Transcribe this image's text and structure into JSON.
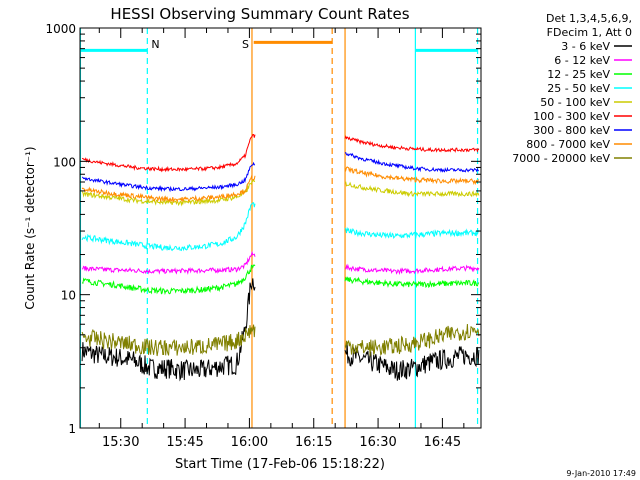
{
  "chart_data": {
    "type": "line",
    "title": "HESSI Observing Summary Count Rates",
    "xlabel": "Start Time (17-Feb-06 15:18:22)",
    "ylabel": "Count Rate (s⁻¹ detector⁻¹)",
    "x_ticks": [
      "15:30",
      "15:45",
      "16:00",
      "16:15",
      "16:30",
      "16:45"
    ],
    "x_tick_minutes": [
      930,
      945,
      960,
      975,
      990,
      1005
    ],
    "xlim_minutes": [
      920.5,
      1014
    ],
    "y_scale": "log",
    "ylim": [
      1,
      1000
    ],
    "y_ticks": [
      "1",
      "10",
      "100",
      "1000"
    ],
    "legend_header": [
      "Det 1,3,4,5,6,9,",
      "FDecim 1, Att 0"
    ],
    "legend_position": "outside-right",
    "timestamp": "9-Jan-2010 17:49",
    "data_gap_minutes": [
      961.3,
      982.3
    ],
    "markers": [
      {
        "label": "N",
        "minute": 936.2,
        "style": "dashed",
        "color": "#00ffff"
      },
      {
        "label": "S",
        "minute": 960.6,
        "style": "solid",
        "color": "#ff8c00"
      }
    ],
    "vertical_lines": [
      {
        "minute": 920.6,
        "style": "solid",
        "color": "#00ffff"
      },
      {
        "minute": 936.2,
        "style": "dashed",
        "color": "#00ffff"
      },
      {
        "minute": 960.6,
        "style": "solid",
        "color": "#ff8c00"
      },
      {
        "minute": 979.3,
        "style": "dashed",
        "color": "#ff8c00"
      },
      {
        "minute": 982.3,
        "style": "solid",
        "color": "#ff8c00"
      },
      {
        "minute": 998.7,
        "style": "solid",
        "color": "#00ffff"
      },
      {
        "minute": 1013.2,
        "style": "dashed",
        "color": "#00ffff"
      }
    ],
    "flag_bars": [
      {
        "color": "#00ffff",
        "y": 680,
        "x0": 920.6,
        "x1": 936.2
      },
      {
        "color": "#ff8c00",
        "y": 780,
        "x0": 961.0,
        "x1": 979.3
      },
      {
        "color": "#00ffff",
        "y": 680,
        "x0": 998.7,
        "x1": 1013.2
      }
    ],
    "series": [
      {
        "name": "3 - 6 keV",
        "color": "#000000",
        "x": [
          921,
          925,
          929,
          933,
          937,
          941,
          945,
          949,
          953,
          957,
          959,
          960.5,
          982.5,
          986,
          990,
          994,
          998,
          1002,
          1006,
          1010,
          1013.5
        ],
        "y": [
          3.8,
          3.5,
          3.4,
          3.2,
          2.8,
          2.8,
          2.7,
          2.7,
          2.9,
          3.0,
          5.5,
          13,
          3.6,
          3.3,
          3.0,
          2.7,
          2.8,
          3.1,
          3.3,
          3.5,
          3.5
        ]
      },
      {
        "name": "6 - 12 keV",
        "color": "#ff00ff",
        "x": [
          921,
          925,
          929,
          933,
          937,
          941,
          945,
          949,
          953,
          957,
          959,
          960.5,
          982.5,
          986,
          990,
          994,
          998,
          1002,
          1006,
          1010,
          1013.5
        ],
        "y": [
          15.8,
          15.5,
          15.3,
          15.2,
          15.0,
          15.0,
          15.1,
          15.2,
          15.3,
          15.5,
          16.5,
          20,
          16,
          15.5,
          15.2,
          15.0,
          15.1,
          15.3,
          15.6,
          15.8,
          15.8
        ]
      },
      {
        "name": "12 - 25 keV",
        "color": "#00ff00",
        "x": [
          921,
          925,
          929,
          933,
          937,
          941,
          945,
          949,
          953,
          957,
          959,
          960.5,
          982.5,
          986,
          990,
          994,
          998,
          1002,
          1006,
          1010,
          1013.5
        ],
        "y": [
          12.8,
          12.2,
          11.8,
          11.2,
          10.8,
          10.6,
          10.7,
          10.9,
          11.3,
          12.0,
          13.5,
          16,
          13,
          12.6,
          12.3,
          12.0,
          11.9,
          12.0,
          12.1,
          12.2,
          12.2
        ]
      },
      {
        "name": "25 - 50 keV",
        "color": "#00ffff",
        "x": [
          921,
          925,
          929,
          933,
          937,
          941,
          945,
          949,
          953,
          957,
          959,
          960.5,
          982.5,
          986,
          990,
          994,
          998,
          1002,
          1006,
          1010,
          1013.5
        ],
        "y": [
          27,
          26,
          25,
          24,
          23,
          22.5,
          22.5,
          23,
          24,
          27,
          34,
          48,
          30,
          29,
          28,
          27.5,
          28,
          28.5,
          29,
          29,
          29
        ]
      },
      {
        "name": "50 - 100 keV",
        "color": "#cccc00",
        "x": [
          921,
          925,
          929,
          933,
          937,
          941,
          945,
          949,
          953,
          957,
          959,
          960.5,
          982.5,
          986,
          990,
          994,
          998,
          1002,
          1006,
          1010,
          1013.5
        ],
        "y": [
          57,
          55,
          53,
          51,
          50,
          49,
          49,
          50,
          51,
          54,
          58,
          70,
          68,
          64,
          61,
          59,
          57,
          57,
          57,
          57,
          57
        ]
      },
      {
        "name": "100 - 300 keV",
        "color": "#ff0000",
        "x": [
          921,
          925,
          929,
          933,
          937,
          941,
          945,
          949,
          953,
          957,
          959,
          960.5,
          982.5,
          986,
          990,
          994,
          998,
          1002,
          1006,
          1010,
          1013.5
        ],
        "y": [
          104,
          98,
          94,
          90,
          88,
          87,
          87,
          88,
          90,
          96,
          110,
          155,
          150,
          140,
          132,
          127,
          124,
          122,
          122,
          122,
          122
        ]
      },
      {
        "name": "300 - 800 keV",
        "color": "#0000ff",
        "x": [
          921,
          925,
          929,
          933,
          937,
          941,
          945,
          949,
          953,
          957,
          959,
          960.5,
          982.5,
          986,
          990,
          994,
          998,
          1002,
          1006,
          1010,
          1013.5
        ],
        "y": [
          75,
          71,
          68,
          65,
          63,
          62,
          62,
          63,
          64,
          67,
          72,
          95,
          115,
          105,
          98,
          93,
          89,
          87,
          86,
          86,
          86
        ]
      },
      {
        "name": "800 - 7000 keV",
        "color": "#ff8c00",
        "x": [
          921,
          925,
          929,
          933,
          937,
          941,
          945,
          949,
          953,
          957,
          959,
          960.5,
          982.5,
          986,
          990,
          994,
          998,
          1002,
          1006,
          1010,
          1013.5
        ],
        "y": [
          62,
          59,
          57,
          55,
          53,
          52,
          52,
          53,
          54,
          57,
          60,
          75,
          88,
          82,
          78,
          75,
          73,
          72,
          71,
          71,
          71
        ]
      },
      {
        "name": "7000 - 20000 keV",
        "color": "#808000",
        "x": [
          921,
          925,
          929,
          933,
          937,
          941,
          945,
          949,
          953,
          957,
          959,
          960.5,
          982.5,
          986,
          990,
          994,
          998,
          1002,
          1006,
          1010,
          1013.5
        ],
        "y": [
          4.8,
          4.6,
          4.4,
          4.2,
          4.0,
          4.0,
          4.0,
          4.1,
          4.2,
          4.5,
          5.0,
          5.5,
          4.2,
          4.0,
          4.0,
          4.1,
          4.3,
          4.6,
          5.0,
          5.3,
          5.5
        ]
      }
    ]
  }
}
